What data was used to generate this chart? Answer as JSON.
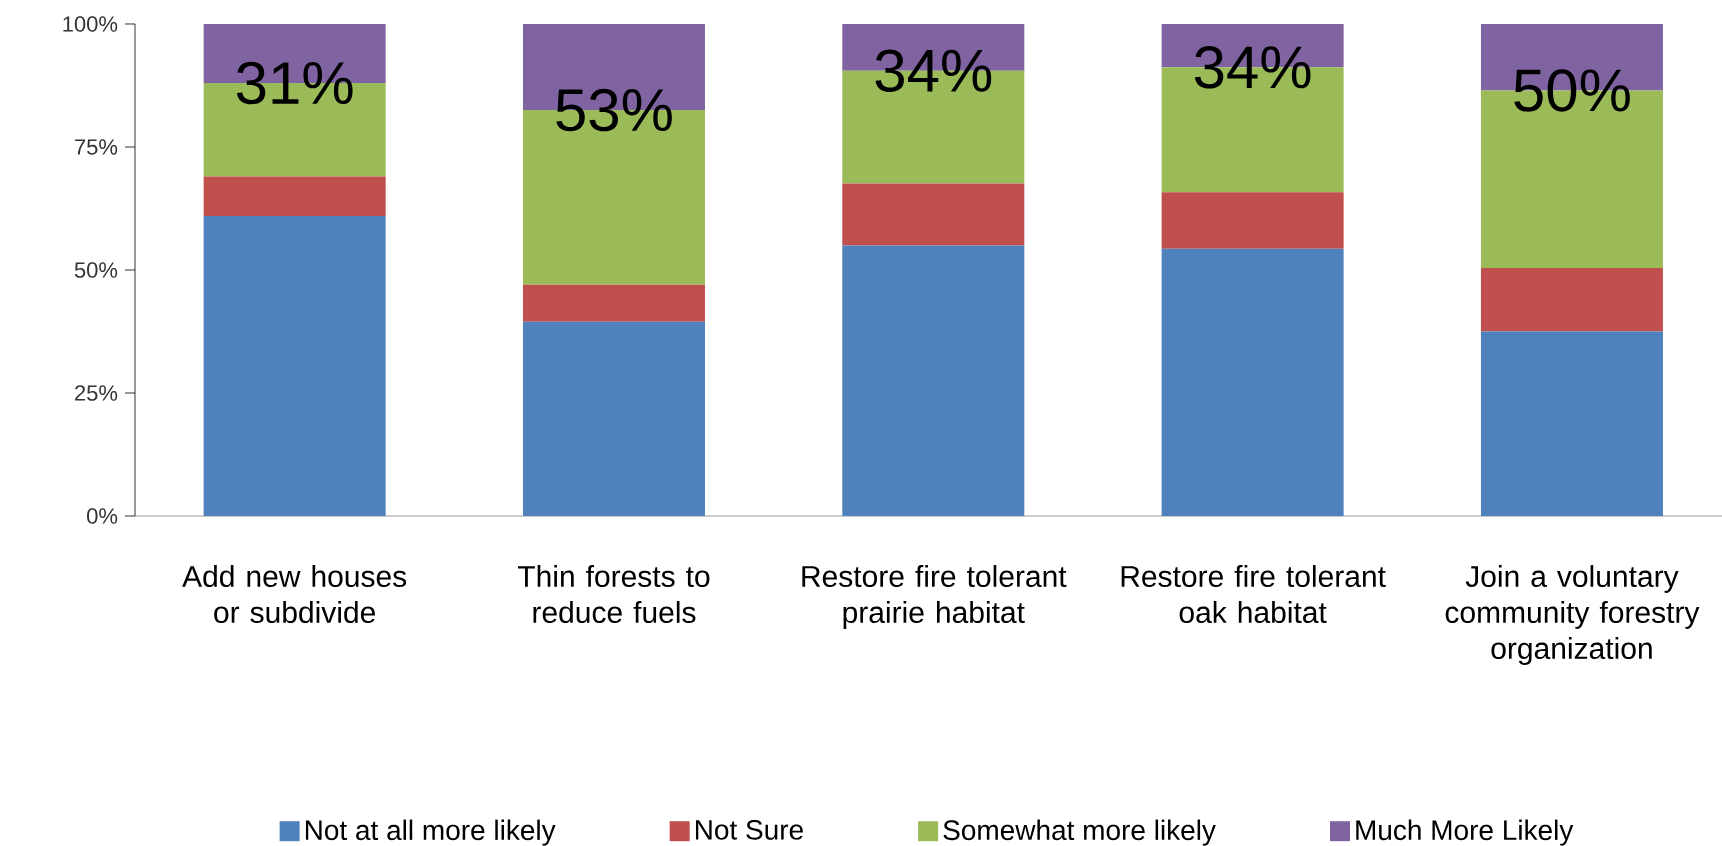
{
  "chart_data": {
    "type": "bar",
    "stacked": true,
    "categories": [
      "Add new houses or subdivide",
      "Thin forests to reduce fuels",
      "Restore fire tolerant prairie habitat",
      "Restore fire tolerant oak habitat",
      "Join a voluntary community forestry organization"
    ],
    "series": [
      {
        "name": "Not at all more likely",
        "color": "#4f81bd",
        "values": [
          61,
          39.5,
          55,
          54.3,
          37.5
        ]
      },
      {
        "name": "Not Sure",
        "color": "#c0504d",
        "values": [
          8,
          7.5,
          12.6,
          11.5,
          12.9
        ]
      },
      {
        "name": "Somewhat more likely",
        "color": "#9bbb59",
        "values": [
          19,
          35.5,
          22.9,
          25.4,
          36.1
        ]
      },
      {
        "name": "Much More Likely",
        "color": "#8064a2",
        "values": [
          12,
          17.5,
          9.5,
          8.8,
          13.5
        ]
      }
    ],
    "ylim": [
      0,
      100
    ],
    "yticks": [
      {
        "value": 0,
        "label": "0%"
      },
      {
        "value": 25,
        "label": "25%"
      },
      {
        "value": 50,
        "label": "50%"
      },
      {
        "value": 75,
        "label": "75%"
      },
      {
        "value": 100,
        "label": "100%"
      }
    ],
    "annotations": [
      "31%",
      "53%",
      "34%",
      "34%",
      "50%"
    ],
    "grid": false,
    "legend": "bottom"
  }
}
